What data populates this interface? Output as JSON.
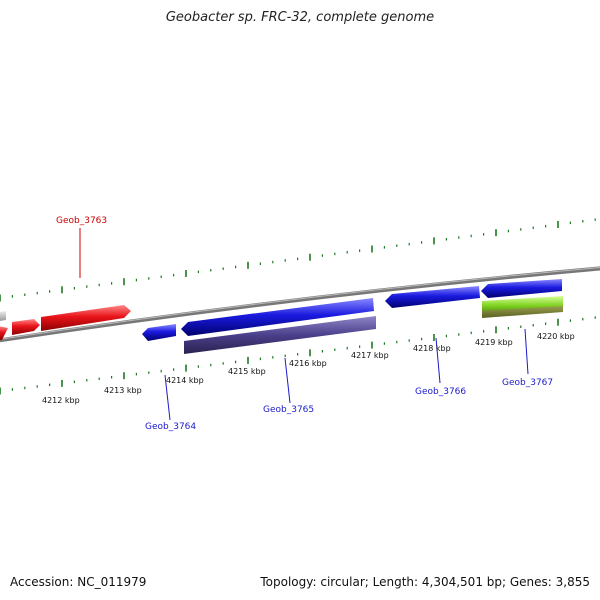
{
  "title": "Geobacter sp. FRC-32, complete genome",
  "footer": {
    "accession": "Accession: NC_011979",
    "summary": "Topology: circular; Length: 4,304,501 bp; Genes: 3,855"
  },
  "colors": {
    "forward_gene": "#e8141a",
    "reverse_gene": "#1a1ae0",
    "rna_gene": "#4a3f8a",
    "other_gene": "#7fd321",
    "backbone": "#888888",
    "tick": "#1f7a1f",
    "label_forward": "#cc0000",
    "label_reverse": "#1a1acc"
  },
  "axis": {
    "ticks": [
      "4212 kbp",
      "4213 kbp",
      "4214 kbp",
      "4215 kbp",
      "4216 kbp",
      "4217 kbp",
      "4218 kbp",
      "4219 kbp",
      "4220 kbp"
    ]
  },
  "genes": [
    {
      "label": "Geob_3763",
      "strand": "forward"
    },
    {
      "label": "Geob_3764",
      "strand": "reverse"
    },
    {
      "label": "Geob_3765",
      "strand": "reverse"
    },
    {
      "label": "Geob_3766",
      "strand": "reverse"
    },
    {
      "label": "Geob_3767",
      "strand": "reverse"
    }
  ]
}
